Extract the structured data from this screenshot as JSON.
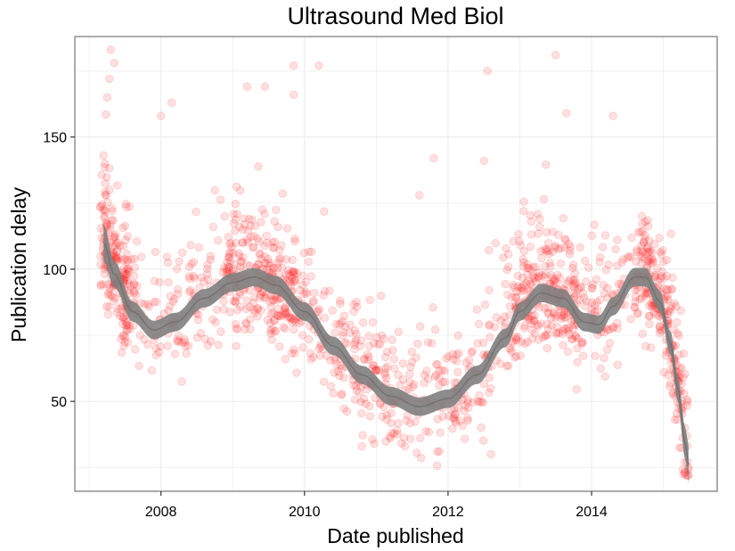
{
  "chart_data": {
    "type": "scatter",
    "title": "Ultrasound Med Biol",
    "xlabel": "Date published",
    "ylabel": "Publication delay",
    "xlim": [
      2006.8,
      2015.75
    ],
    "ylim": [
      16,
      188
    ],
    "x_ticks": [
      2008,
      2010,
      2012,
      2014
    ],
    "y_ticks": [
      50,
      100,
      150
    ],
    "grid": true,
    "point_color": "#ff0000",
    "point_alpha": 0.12,
    "smooth_color": "#808080",
    "smooth_fit": {
      "type": "loess",
      "x": [
        2007.2,
        2007.35,
        2007.6,
        2007.9,
        2008.2,
        2008.6,
        2009.0,
        2009.3,
        2009.6,
        2010.0,
        2010.4,
        2010.8,
        2011.2,
        2011.6,
        2012.0,
        2012.4,
        2012.8,
        2013.0,
        2013.3,
        2013.6,
        2013.9,
        2014.1,
        2014.3,
        2014.6,
        2014.75,
        2014.95,
        2015.1,
        2015.2,
        2015.3,
        2015.35
      ],
      "y": [
        110,
        98,
        84,
        77,
        80,
        89,
        95,
        97,
        94,
        84,
        71,
        60,
        52,
        48,
        51,
        60,
        74,
        84,
        91,
        89,
        80,
        79,
        86,
        97,
        97,
        88,
        72,
        55,
        35,
        26
      ],
      "band_halfwidth": [
        7,
        5,
        3.8,
        3.5,
        3.5,
        3.5,
        3.5,
        3.5,
        3.5,
        3.5,
        3.5,
        3.5,
        3.5,
        3.5,
        3.5,
        3.5,
        3.5,
        3.5,
        3.5,
        3.5,
        3.5,
        3.5,
        3.5,
        3.5,
        3.5,
        4,
        4.5,
        5,
        6,
        7
      ]
    },
    "scatter_summary": {
      "n_points": 1600,
      "seed": 1337,
      "noise_sd_clipped": [
        -28,
        55
      ]
    },
    "outliers": [
      {
        "x": 2007.2,
        "y": 143
      },
      {
        "x": 2007.22,
        "y": 140
      },
      {
        "x": 2007.25,
        "y": 165
      },
      {
        "x": 2007.28,
        "y": 172
      },
      {
        "x": 2007.3,
        "y": 183
      },
      {
        "x": 2007.35,
        "y": 178
      },
      {
        "x": 2008.0,
        "y": 158
      },
      {
        "x": 2008.15,
        "y": 163
      },
      {
        "x": 2009.2,
        "y": 169
      },
      {
        "x": 2009.45,
        "y": 169
      },
      {
        "x": 2009.85,
        "y": 177
      },
      {
        "x": 2009.85,
        "y": 166
      },
      {
        "x": 2010.2,
        "y": 177
      },
      {
        "x": 2012.55,
        "y": 175
      },
      {
        "x": 2013.5,
        "y": 181
      },
      {
        "x": 2013.65,
        "y": 159
      },
      {
        "x": 2014.3,
        "y": 158
      },
      {
        "x": 2011.6,
        "y": 128
      },
      {
        "x": 2011.8,
        "y": 142
      },
      {
        "x": 2012.5,
        "y": 141
      },
      {
        "x": 2010.8,
        "y": 33
      },
      {
        "x": 2011.4,
        "y": 33
      },
      {
        "x": 2011.85,
        "y": 31
      },
      {
        "x": 2012.6,
        "y": 30
      },
      {
        "x": 2015.35,
        "y": 25
      },
      {
        "x": 2015.3,
        "y": 27
      }
    ]
  }
}
